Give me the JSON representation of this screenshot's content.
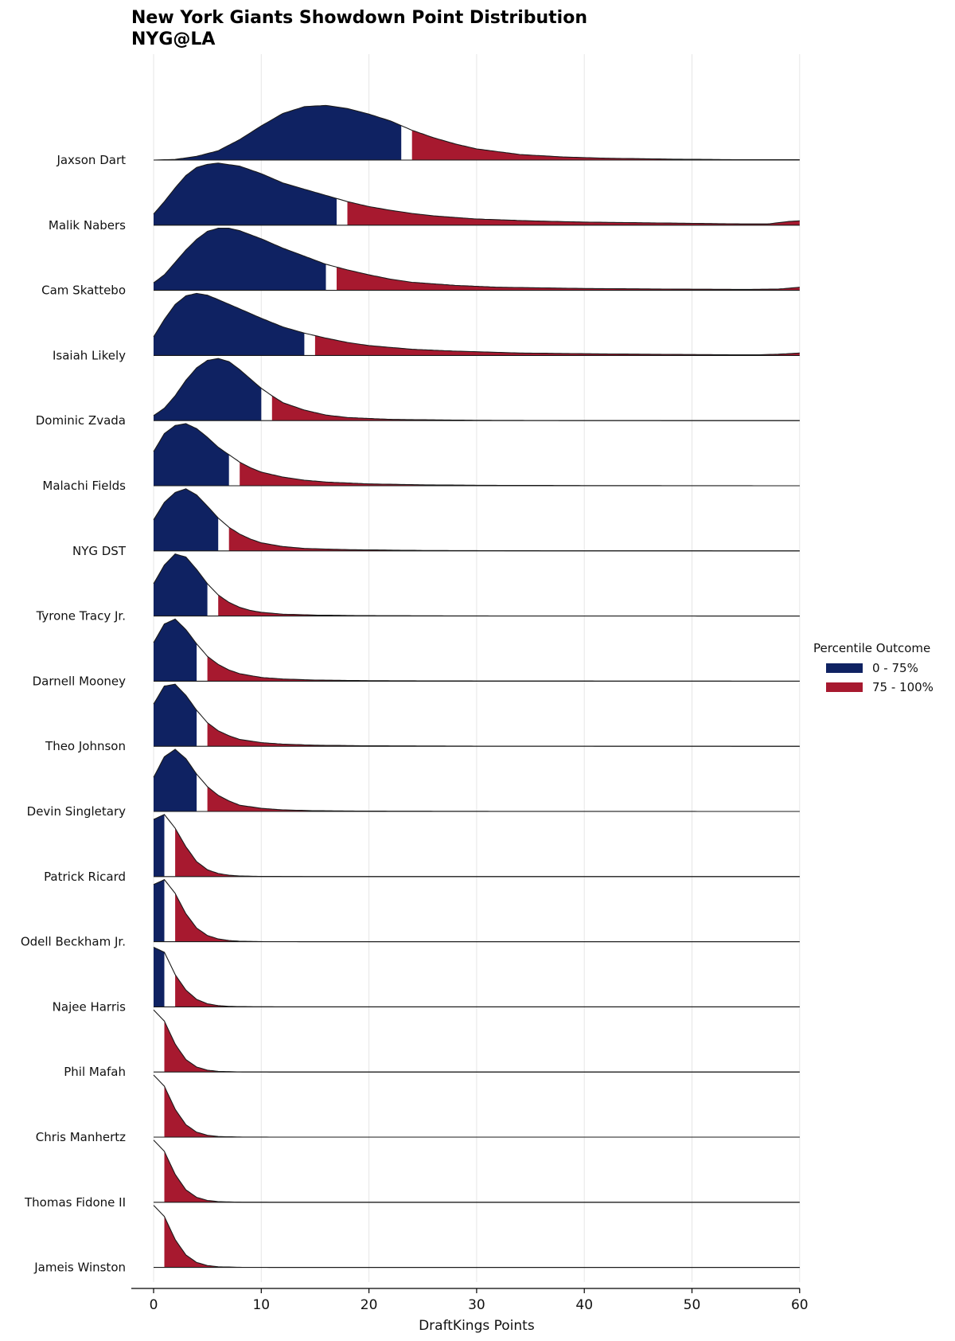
{
  "title": "New York Giants Showdown Point Distribution",
  "subtitle": "NYG@LA",
  "legend": {
    "title": "Percentile Outcome",
    "items": [
      {
        "label": "0 - 75%",
        "color": "#0f2262"
      },
      {
        "label": "75 - 100%",
        "color": "#a7192f"
      }
    ]
  },
  "colors": {
    "low": "#0f2262",
    "high": "#a7192f",
    "grid": "#e6e6e6",
    "outline": "#1a1a1a",
    "gap": "#ffffff"
  },
  "chart_data": {
    "type": "area",
    "xlabel": "DraftKings Points",
    "xlim": [
      -2,
      60
    ],
    "xticks": [
      0,
      10,
      20,
      30,
      40,
      50,
      60
    ],
    "grid": true,
    "legend_position": "right",
    "players": [
      {
        "name": "Jaxson Dart",
        "p75": [
          23,
          24
        ],
        "density": [
          [
            0,
            0
          ],
          [
            2,
            0.01
          ],
          [
            4,
            0.06
          ],
          [
            6,
            0.15
          ],
          [
            8,
            0.33
          ],
          [
            10,
            0.55
          ],
          [
            12,
            0.75
          ],
          [
            14,
            0.86
          ],
          [
            16,
            0.88
          ],
          [
            18,
            0.83
          ],
          [
            20,
            0.74
          ],
          [
            22,
            0.63
          ],
          [
            24,
            0.48
          ],
          [
            26,
            0.36
          ],
          [
            28,
            0.26
          ],
          [
            30,
            0.18
          ],
          [
            34,
            0.09
          ],
          [
            38,
            0.05
          ],
          [
            42,
            0.03
          ],
          [
            48,
            0.015
          ],
          [
            55,
            0.005
          ],
          [
            60,
            0.005
          ]
        ]
      },
      {
        "name": "Malik Nabers",
        "p75": [
          17,
          18
        ],
        "density": [
          [
            0,
            0.18
          ],
          [
            1,
            0.38
          ],
          [
            2,
            0.6
          ],
          [
            3,
            0.8
          ],
          [
            4,
            0.93
          ],
          [
            5,
            0.98
          ],
          [
            6,
            1.0
          ],
          [
            8,
            0.95
          ],
          [
            10,
            0.83
          ],
          [
            12,
            0.68
          ],
          [
            14,
            0.58
          ],
          [
            16,
            0.48
          ],
          [
            18,
            0.38
          ],
          [
            20,
            0.3
          ],
          [
            22,
            0.24
          ],
          [
            24,
            0.19
          ],
          [
            26,
            0.15
          ],
          [
            30,
            0.1
          ],
          [
            35,
            0.07
          ],
          [
            40,
            0.05
          ],
          [
            45,
            0.04
          ],
          [
            50,
            0.03
          ],
          [
            55,
            0.02
          ],
          [
            57,
            0.02
          ],
          [
            59,
            0.06
          ],
          [
            60,
            0.07
          ]
        ]
      },
      {
        "name": "Cam Skattebo",
        "p75": [
          16,
          17
        ],
        "density": [
          [
            0,
            0.12
          ],
          [
            1,
            0.25
          ],
          [
            2,
            0.45
          ],
          [
            3,
            0.65
          ],
          [
            4,
            0.82
          ],
          [
            5,
            0.95
          ],
          [
            6,
            1.0
          ],
          [
            7,
            1.0
          ],
          [
            8,
            0.96
          ],
          [
            10,
            0.83
          ],
          [
            12,
            0.68
          ],
          [
            14,
            0.55
          ],
          [
            16,
            0.42
          ],
          [
            18,
            0.33
          ],
          [
            20,
            0.25
          ],
          [
            22,
            0.18
          ],
          [
            24,
            0.13
          ],
          [
            28,
            0.08
          ],
          [
            32,
            0.05
          ],
          [
            40,
            0.03
          ],
          [
            48,
            0.02
          ],
          [
            55,
            0.015
          ],
          [
            58,
            0.02
          ],
          [
            60,
            0.05
          ]
        ]
      },
      {
        "name": "Isaiah Likely",
        "p75": [
          14,
          15
        ],
        "density": [
          [
            0,
            0.3
          ],
          [
            1,
            0.58
          ],
          [
            2,
            0.82
          ],
          [
            3,
            0.96
          ],
          [
            4,
            1.0
          ],
          [
            5,
            0.97
          ],
          [
            6,
            0.9
          ],
          [
            8,
            0.75
          ],
          [
            10,
            0.6
          ],
          [
            12,
            0.46
          ],
          [
            14,
            0.36
          ],
          [
            16,
            0.28
          ],
          [
            18,
            0.21
          ],
          [
            20,
            0.16
          ],
          [
            24,
            0.1
          ],
          [
            28,
            0.07
          ],
          [
            34,
            0.04
          ],
          [
            42,
            0.025
          ],
          [
            50,
            0.015
          ],
          [
            56,
            0.01
          ],
          [
            58,
            0.02
          ],
          [
            60,
            0.04
          ]
        ]
      },
      {
        "name": "Dominic Zvada",
        "p75": [
          10,
          11
        ],
        "density": [
          [
            0,
            0.08
          ],
          [
            1,
            0.2
          ],
          [
            2,
            0.4
          ],
          [
            3,
            0.65
          ],
          [
            4,
            0.85
          ],
          [
            5,
            0.97
          ],
          [
            6,
            1.0
          ],
          [
            7,
            0.95
          ],
          [
            8,
            0.82
          ],
          [
            9,
            0.67
          ],
          [
            10,
            0.52
          ],
          [
            11,
            0.4
          ],
          [
            12,
            0.29
          ],
          [
            14,
            0.17
          ],
          [
            16,
            0.09
          ],
          [
            18,
            0.05
          ],
          [
            22,
            0.02
          ],
          [
            30,
            0.005
          ],
          [
            40,
            0.001
          ],
          [
            60,
            0
          ]
        ]
      },
      {
        "name": "Malachi Fields",
        "p75": [
          7,
          8
        ],
        "density": [
          [
            0,
            0.55
          ],
          [
            1,
            0.84
          ],
          [
            2,
            0.97
          ],
          [
            3,
            1.0
          ],
          [
            4,
            0.92
          ],
          [
            5,
            0.78
          ],
          [
            6,
            0.62
          ],
          [
            7,
            0.5
          ],
          [
            8,
            0.38
          ],
          [
            9,
            0.29
          ],
          [
            10,
            0.22
          ],
          [
            12,
            0.14
          ],
          [
            14,
            0.09
          ],
          [
            16,
            0.06
          ],
          [
            20,
            0.03
          ],
          [
            25,
            0.015
          ],
          [
            30,
            0.008
          ],
          [
            40,
            0.003
          ],
          [
            60,
            0
          ]
        ]
      },
      {
        "name": "NYG DST",
        "p75": [
          6,
          7
        ],
        "density": [
          [
            0,
            0.5
          ],
          [
            1,
            0.78
          ],
          [
            2,
            0.94
          ],
          [
            3,
            1.0
          ],
          [
            4,
            0.9
          ],
          [
            5,
            0.72
          ],
          [
            6,
            0.53
          ],
          [
            7,
            0.38
          ],
          [
            8,
            0.27
          ],
          [
            9,
            0.19
          ],
          [
            10,
            0.13
          ],
          [
            12,
            0.07
          ],
          [
            14,
            0.04
          ],
          [
            18,
            0.02
          ],
          [
            25,
            0.007
          ],
          [
            35,
            0.002
          ],
          [
            60,
            0
          ]
        ]
      },
      {
        "name": "Tyrone Tracy Jr.",
        "p75": [
          5,
          6
        ],
        "density": [
          [
            0,
            0.52
          ],
          [
            1,
            0.82
          ],
          [
            2,
            1.0
          ],
          [
            3,
            0.95
          ],
          [
            4,
            0.75
          ],
          [
            5,
            0.52
          ],
          [
            6,
            0.34
          ],
          [
            7,
            0.22
          ],
          [
            8,
            0.14
          ],
          [
            9,
            0.09
          ],
          [
            10,
            0.06
          ],
          [
            12,
            0.03
          ],
          [
            15,
            0.015
          ],
          [
            20,
            0.006
          ],
          [
            30,
            0.002
          ],
          [
            60,
            0
          ]
        ]
      },
      {
        "name": "Darnell Mooney",
        "p75": [
          4,
          5
        ],
        "density": [
          [
            0,
            0.62
          ],
          [
            1,
            0.92
          ],
          [
            2,
            1.0
          ],
          [
            3,
            0.83
          ],
          [
            4,
            0.6
          ],
          [
            5,
            0.4
          ],
          [
            6,
            0.27
          ],
          [
            7,
            0.18
          ],
          [
            8,
            0.12
          ],
          [
            10,
            0.06
          ],
          [
            12,
            0.035
          ],
          [
            15,
            0.018
          ],
          [
            20,
            0.008
          ],
          [
            30,
            0.003
          ],
          [
            60,
            0
          ]
        ]
      },
      {
        "name": "Theo Johnson",
        "p75": [
          4,
          5
        ],
        "density": [
          [
            0,
            0.68
          ],
          [
            1,
            0.97
          ],
          [
            2,
            1.0
          ],
          [
            3,
            0.82
          ],
          [
            4,
            0.58
          ],
          [
            5,
            0.38
          ],
          [
            6,
            0.25
          ],
          [
            7,
            0.17
          ],
          [
            8,
            0.11
          ],
          [
            10,
            0.06
          ],
          [
            12,
            0.035
          ],
          [
            15,
            0.018
          ],
          [
            20,
            0.008
          ],
          [
            30,
            0.003
          ],
          [
            60,
            0
          ]
        ]
      },
      {
        "name": "Devin Singletary",
        "p75": [
          4,
          5
        ],
        "density": [
          [
            0,
            0.55
          ],
          [
            1,
            0.88
          ],
          [
            2,
            1.0
          ],
          [
            3,
            0.85
          ],
          [
            4,
            0.6
          ],
          [
            5,
            0.4
          ],
          [
            6,
            0.26
          ],
          [
            7,
            0.17
          ],
          [
            8,
            0.1
          ],
          [
            10,
            0.05
          ],
          [
            12,
            0.025
          ],
          [
            15,
            0.012
          ],
          [
            20,
            0.005
          ],
          [
            30,
            0.002
          ],
          [
            60,
            0
          ]
        ]
      },
      {
        "name": "Patrick Ricard",
        "p75": [
          1,
          2
        ],
        "density": [
          [
            0,
            0.92
          ],
          [
            1,
            1.0
          ],
          [
            2,
            0.78
          ],
          [
            3,
            0.48
          ],
          [
            4,
            0.24
          ],
          [
            5,
            0.11
          ],
          [
            6,
            0.05
          ],
          [
            7,
            0.022
          ],
          [
            8,
            0.01
          ],
          [
            10,
            0.003
          ],
          [
            15,
            0
          ],
          [
            60,
            0
          ]
        ]
      },
      {
        "name": "Odell Beckham Jr.",
        "p75": [
          1,
          2
        ],
        "density": [
          [
            0,
            0.92
          ],
          [
            1,
            1.0
          ],
          [
            2,
            0.78
          ],
          [
            3,
            0.45
          ],
          [
            4,
            0.22
          ],
          [
            5,
            0.1
          ],
          [
            6,
            0.045
          ],
          [
            7,
            0.02
          ],
          [
            8,
            0.008
          ],
          [
            10,
            0.002
          ],
          [
            15,
            0
          ],
          [
            60,
            0
          ]
        ]
      },
      {
        "name": "Najee Harris",
        "p75": [
          1,
          2
        ],
        "density": [
          [
            0,
            0.96
          ],
          [
            1,
            0.88
          ],
          [
            2,
            0.52
          ],
          [
            3,
            0.27
          ],
          [
            4,
            0.12
          ],
          [
            5,
            0.05
          ],
          [
            6,
            0.02
          ],
          [
            7,
            0.008
          ],
          [
            9,
            0.002
          ],
          [
            12,
            0
          ],
          [
            60,
            0
          ]
        ]
      },
      {
        "name": "Phil Mafah",
        "p75": [
          0,
          1
        ],
        "density": [
          [
            0,
            1.0
          ],
          [
            1,
            0.82
          ],
          [
            2,
            0.45
          ],
          [
            3,
            0.2
          ],
          [
            4,
            0.08
          ],
          [
            5,
            0.03
          ],
          [
            6,
            0.01
          ],
          [
            8,
            0.002
          ],
          [
            12,
            0
          ],
          [
            60,
            0
          ]
        ]
      },
      {
        "name": "Chris Manhertz",
        "p75": [
          0,
          1
        ],
        "density": [
          [
            0,
            1.0
          ],
          [
            1,
            0.82
          ],
          [
            2,
            0.45
          ],
          [
            3,
            0.2
          ],
          [
            4,
            0.08
          ],
          [
            5,
            0.03
          ],
          [
            6,
            0.01
          ],
          [
            8,
            0.002
          ],
          [
            12,
            0
          ],
          [
            60,
            0
          ]
        ]
      },
      {
        "name": "Thomas Fidone II",
        "p75": [
          0,
          1
        ],
        "density": [
          [
            0,
            1.0
          ],
          [
            1,
            0.82
          ],
          [
            2,
            0.45
          ],
          [
            3,
            0.2
          ],
          [
            4,
            0.08
          ],
          [
            5,
            0.03
          ],
          [
            6,
            0.01
          ],
          [
            8,
            0.002
          ],
          [
            12,
            0
          ],
          [
            60,
            0
          ]
        ]
      },
      {
        "name": "Jameis Winston",
        "p75": [
          0,
          1
        ],
        "density": [
          [
            0,
            1.0
          ],
          [
            1,
            0.82
          ],
          [
            2,
            0.45
          ],
          [
            3,
            0.2
          ],
          [
            4,
            0.08
          ],
          [
            5,
            0.03
          ],
          [
            6,
            0.01
          ],
          [
            8,
            0.002
          ],
          [
            12,
            0
          ],
          [
            60,
            0
          ]
        ]
      }
    ]
  }
}
